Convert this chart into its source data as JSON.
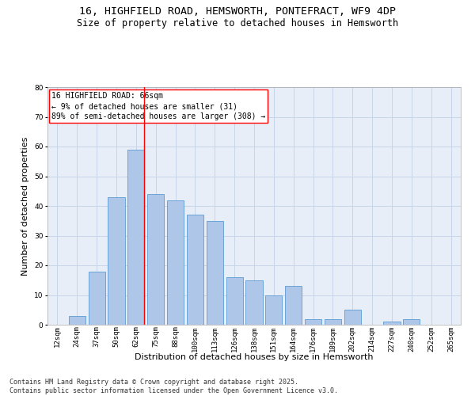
{
  "title_line1": "16, HIGHFIELD ROAD, HEMSWORTH, PONTEFRACT, WF9 4DP",
  "title_line2": "Size of property relative to detached houses in Hemsworth",
  "xlabel": "Distribution of detached houses by size in Hemsworth",
  "ylabel": "Number of detached properties",
  "categories": [
    "12sqm",
    "24sqm",
    "37sqm",
    "50sqm",
    "62sqm",
    "75sqm",
    "88sqm",
    "100sqm",
    "113sqm",
    "126sqm",
    "138sqm",
    "151sqm",
    "164sqm",
    "176sqm",
    "189sqm",
    "202sqm",
    "214sqm",
    "227sqm",
    "240sqm",
    "252sqm",
    "265sqm"
  ],
  "values": [
    0,
    3,
    18,
    43,
    59,
    44,
    42,
    37,
    35,
    16,
    15,
    10,
    13,
    2,
    2,
    5,
    0,
    1,
    2,
    0,
    0
  ],
  "bar_color": "#aec6e8",
  "bar_edge_color": "#5b9bd5",
  "grid_color": "#c8d4e8",
  "background_color": "#e8eef8",
  "annotation_box_text": "16 HIGHFIELD ROAD: 66sqm\n← 9% of detached houses are smaller (31)\n89% of semi-detached houses are larger (308) →",
  "vline_x_index": 4,
  "vline_color": "red",
  "ylim": [
    0,
    80
  ],
  "yticks": [
    0,
    10,
    20,
    30,
    40,
    50,
    60,
    70,
    80
  ],
  "footnote": "Contains HM Land Registry data © Crown copyright and database right 2025.\nContains public sector information licensed under the Open Government Licence v3.0.",
  "title_fontsize": 9.5,
  "subtitle_fontsize": 8.5,
  "axis_label_fontsize": 8,
  "tick_fontsize": 6.5,
  "annotation_fontsize": 7,
  "footnote_fontsize": 6
}
